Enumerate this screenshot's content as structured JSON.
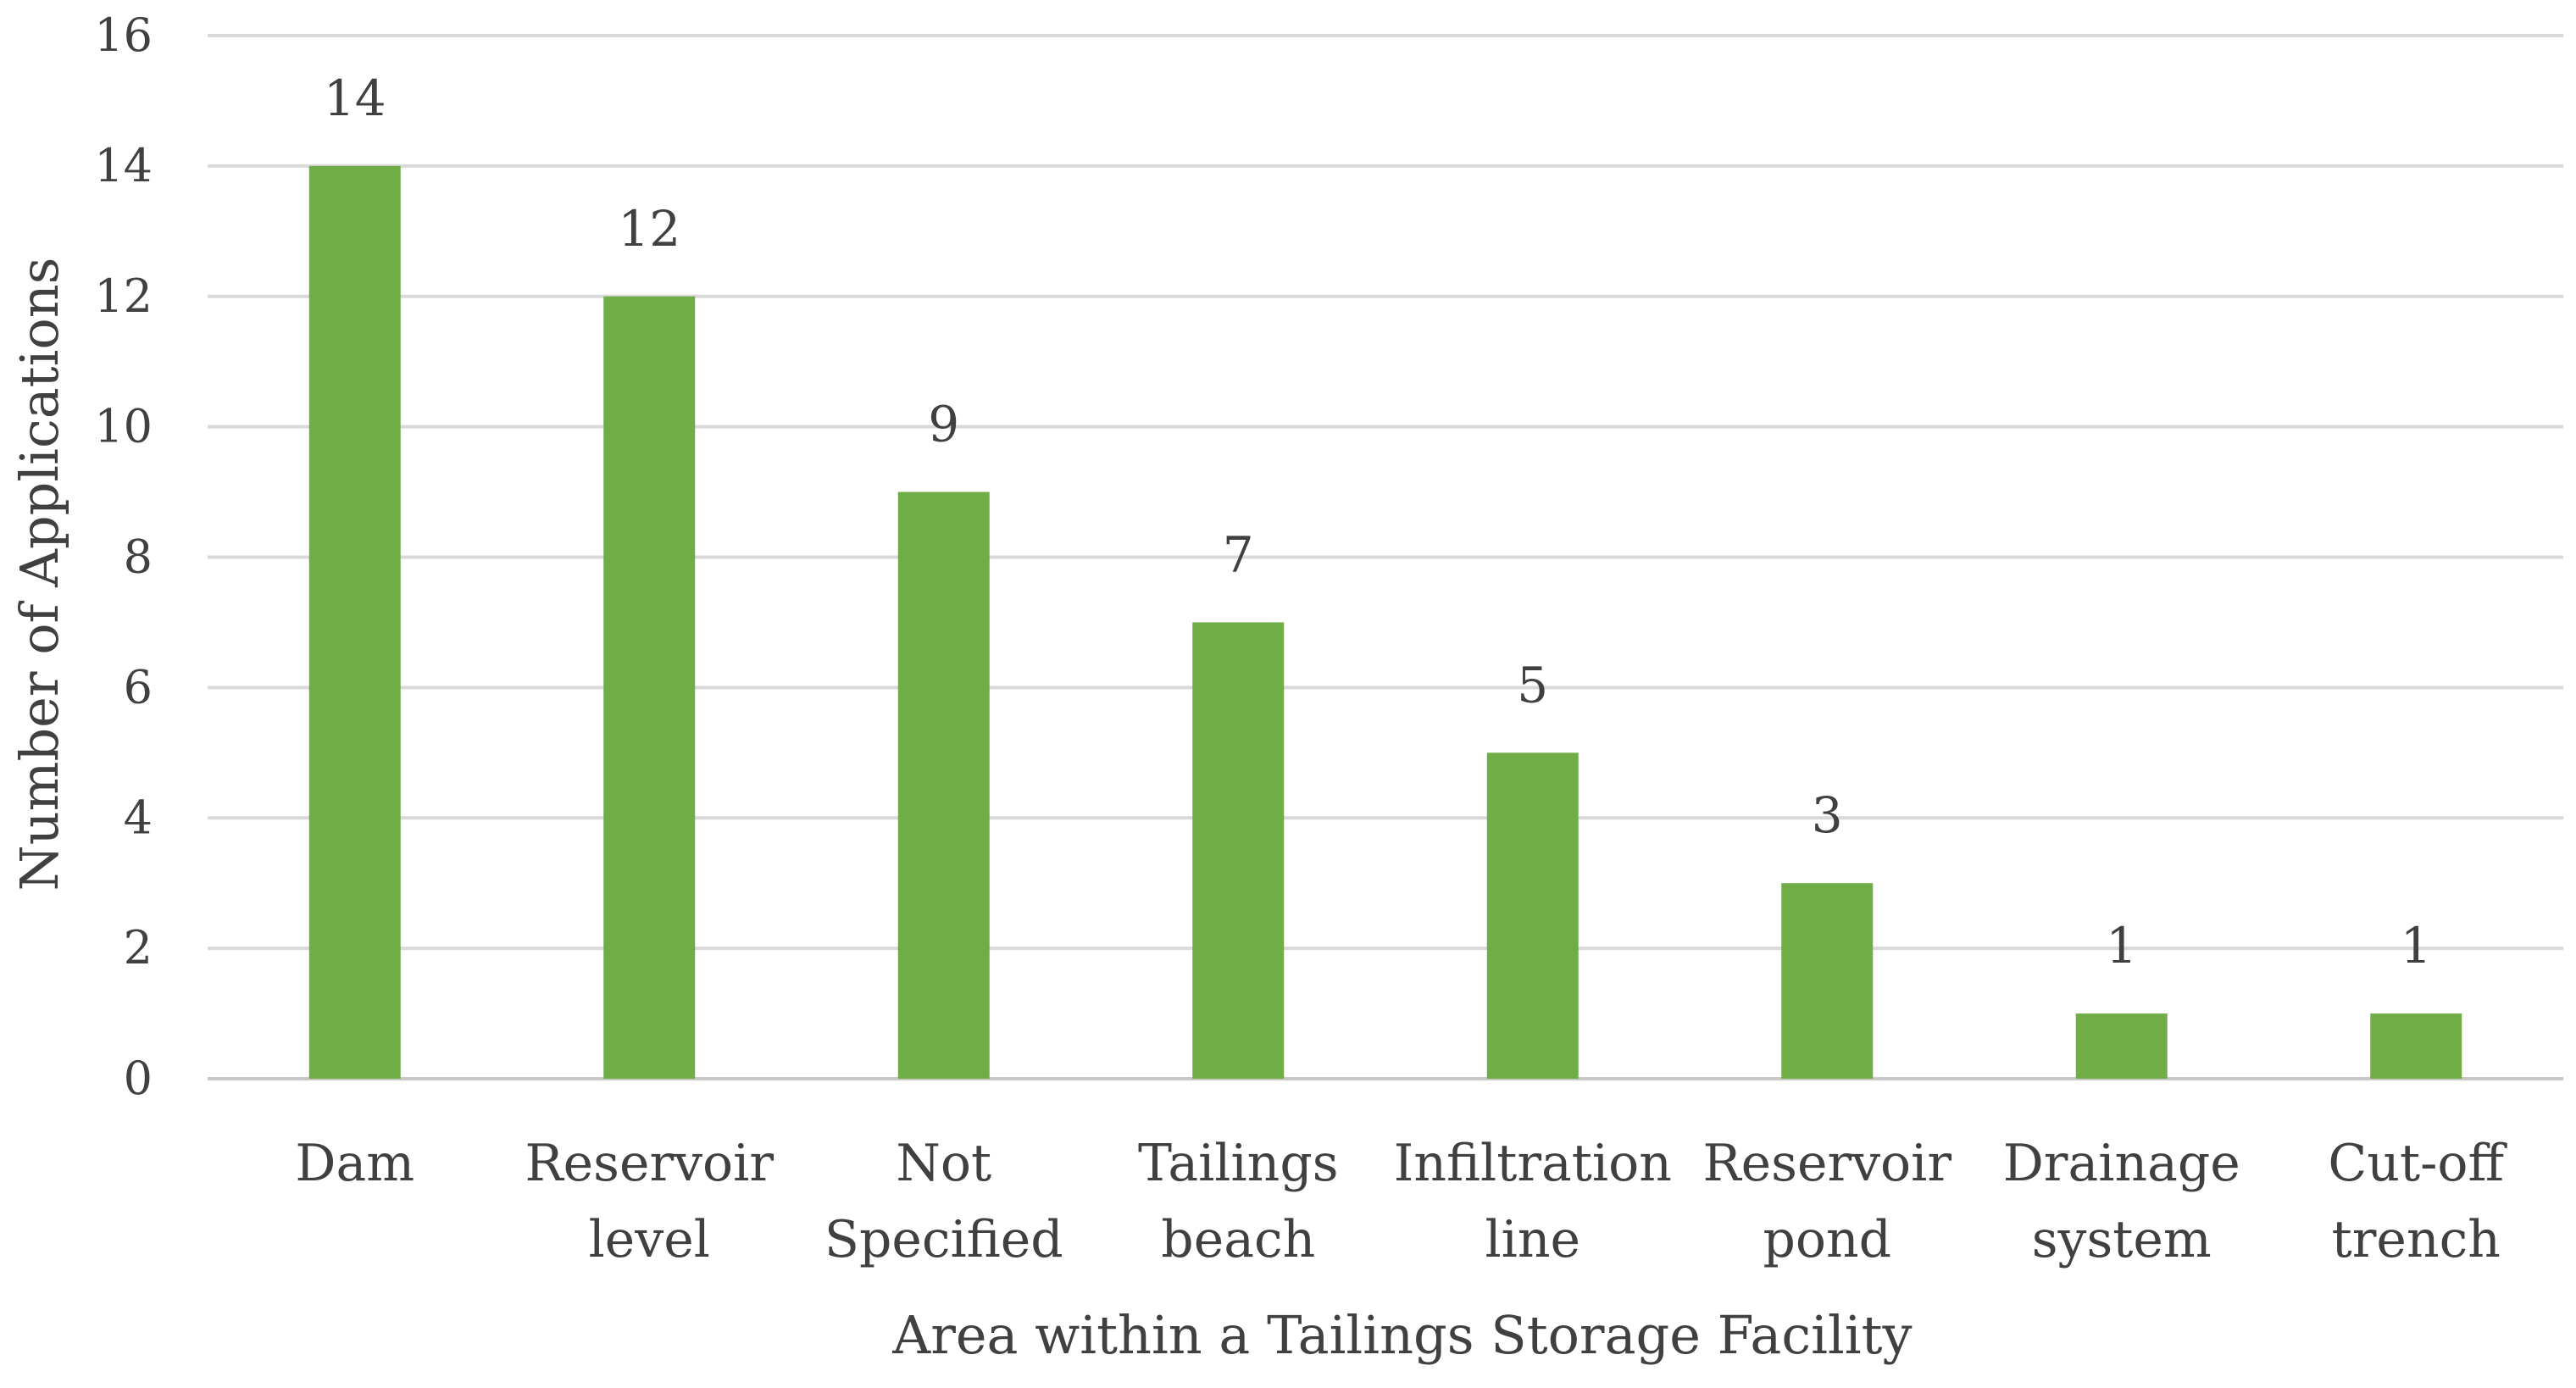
{
  "chart_data": {
    "type": "bar",
    "categories": [
      [
        "Dam"
      ],
      [
        "Reservoir",
        "level"
      ],
      [
        "Not",
        "Specified"
      ],
      [
        "Tailings",
        "beach"
      ],
      [
        "Infiltration",
        "line"
      ],
      [
        "Reservoir",
        "pond"
      ],
      [
        "Drainage",
        "system"
      ],
      [
        "Cut-off",
        "trench"
      ]
    ],
    "values": [
      14,
      12,
      9,
      7,
      5,
      3,
      1,
      1
    ],
    "data_labels": [
      "14",
      "12",
      "9",
      "7",
      "5",
      "3",
      "1",
      "1"
    ],
    "xlabel": "Area within a Tailings Storage Facility",
    "ylabel": "Number of Applications",
    "ylim": [
      0,
      16
    ],
    "yticks": [
      "0",
      "2",
      "4",
      "6",
      "8",
      "10",
      "12",
      "14",
      "16"
    ],
    "grid": true,
    "legend": "none",
    "colors": {
      "bar": "#70ad47",
      "grid": "#d9d9d9",
      "text": "#404040"
    }
  }
}
